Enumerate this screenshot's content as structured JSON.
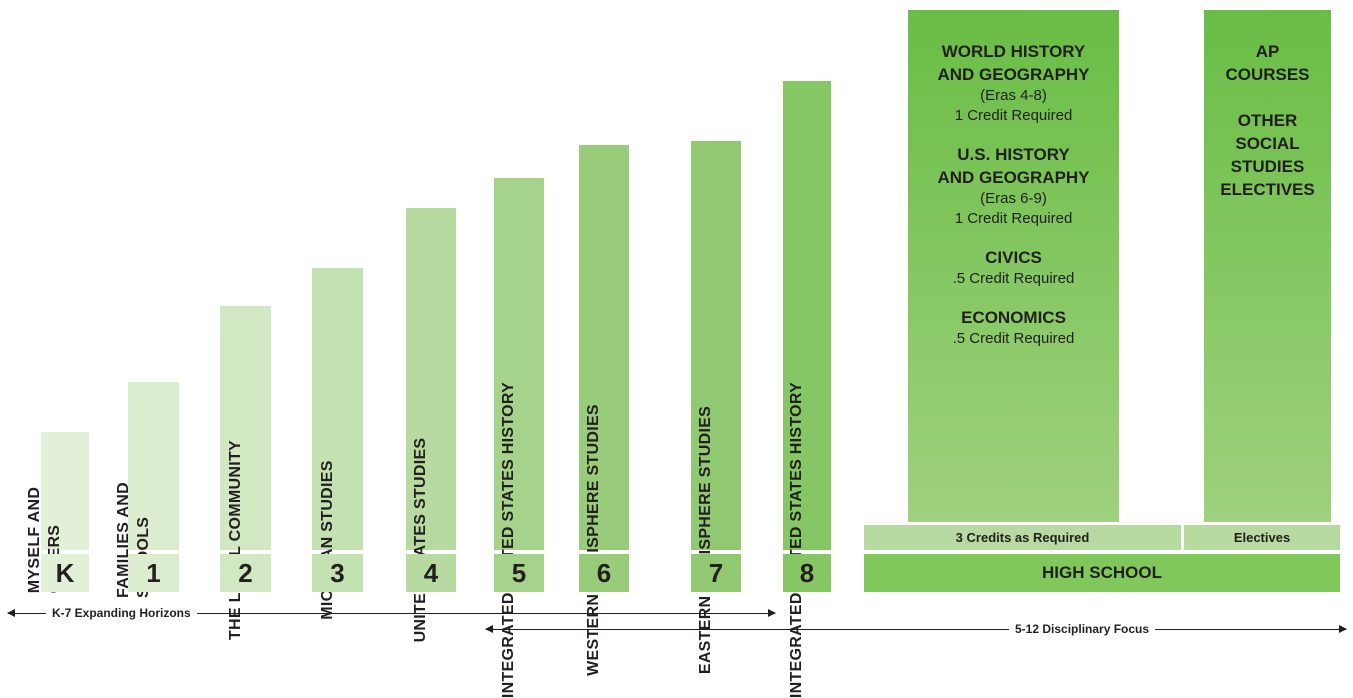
{
  "grades": [
    {
      "grade": "K",
      "title": "MYSELF AND\nOTHERS"
    },
    {
      "grade": "1",
      "title": "FAMILIES AND\nSCHOOLS"
    },
    {
      "grade": "2",
      "title": "THE LOCAL COMMUNITY"
    },
    {
      "grade": "3",
      "title": "MICHIGAN STUDIES"
    },
    {
      "grade": "4",
      "title": "UNITED STATES STUDIES"
    },
    {
      "grade": "5",
      "title": "INTEGRATED UNITED STATES HISTORY"
    },
    {
      "grade": "6",
      "title": "WESTERN HEMISPHERE STUDIES"
    },
    {
      "grade": "7",
      "title": "EASTERN HEMISPHERE STUDIES"
    },
    {
      "grade": "8",
      "title": "INTEGRATED UNITED STATES HISTORY"
    }
  ],
  "high_school": {
    "required_courses": [
      {
        "title": "WORLD HISTORY\nAND GEOGRAPHY",
        "eras": "(Eras 4-8)",
        "credit": "1 Credit Required"
      },
      {
        "title": "U.S. HISTORY\nAND GEOGRAPHY",
        "eras": "(Eras 6-9)",
        "credit": "1 Credit Required"
      },
      {
        "title": "CIVICS",
        "eras": "",
        "credit": ".5 Credit Required"
      },
      {
        "title": "ECONOMICS",
        "eras": "",
        "credit": ".5 Credit Required"
      }
    ],
    "electives": [
      "AP\nCOURSES",
      "OTHER\nSOCIAL\nSTUDIES\nELECTIVES"
    ],
    "required_strip": "3 Credits as Required",
    "electives_strip": "Electives",
    "footer": "HIGH SCHOOL"
  },
  "timelines": {
    "expanding": "K-7 Expanding Horizons",
    "disciplinary": "5-12 Disciplinary Focus"
  },
  "colors": {
    "bar_light": "#e3f0d8",
    "bar_mid": "#b6da9f",
    "bar_dark": "#86c765",
    "hs_top": "#69bd45",
    "hs_bottom": "#9fd17e",
    "footer": "#80c85c",
    "text": "#231f20"
  }
}
